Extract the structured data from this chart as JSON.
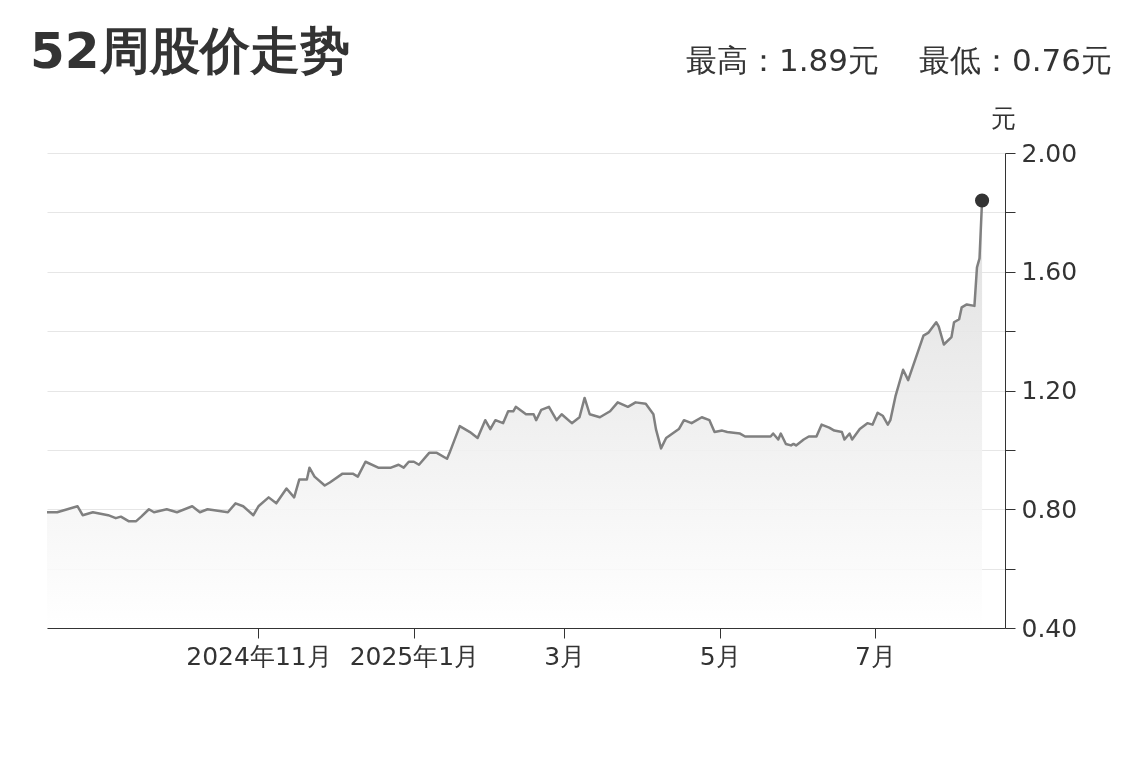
{
  "chart_data": {
    "type": "area",
    "title": "52周股价走势",
    "annotations": [
      "最高：1.89元",
      "最低：0.76元"
    ],
    "ylabel": "元",
    "xlim": [
      "2024-08-10",
      "2025-08-21"
    ],
    "xticks": [
      {
        "value": "2024-11-01",
        "label": "2024年11月"
      },
      {
        "value": "2025-01-01",
        "label": "2025年1月"
      },
      {
        "value": "2025-03-01",
        "label": "3月"
      },
      {
        "value": "2025-05-01",
        "label": "5月"
      },
      {
        "value": "2025-07-01",
        "label": "7月"
      }
    ],
    "ylim": [
      0.4,
      2.0
    ],
    "yticks": [
      {
        "value": 0.4,
        "label": "0.40"
      },
      {
        "value": 0.6,
        "label": null
      },
      {
        "value": 0.8,
        "label": "0.80"
      },
      {
        "value": 1.0,
        "label": null
      },
      {
        "value": 1.2,
        "label": "1.20"
      },
      {
        "value": 1.4,
        "label": null
      },
      {
        "value": 1.6,
        "label": "1.60"
      },
      {
        "value": 1.8,
        "label": null
      },
      {
        "value": 2.0,
        "label": "2.00"
      }
    ],
    "grid": "y",
    "series": [
      {
        "color": "#808080",
        "x": [
          "2024-08-10",
          "2024-08-14",
          "2024-08-18",
          "2024-08-22",
          "2024-08-24",
          "2024-08-28",
          "2024-09-03",
          "2024-09-06",
          "2024-09-08",
          "2024-09-11",
          "2024-09-14",
          "2024-09-16",
          "2024-09-19",
          "2024-09-21",
          "2024-09-26",
          "2024-09-30",
          "2024-10-06",
          "2024-10-09",
          "2024-10-12",
          "2024-10-20",
          "2024-10-23",
          "2024-10-26",
          "2024-10-30",
          "2024-11-01",
          "2024-11-05",
          "2024-11-08",
          "2024-11-12",
          "2024-11-15",
          "2024-11-17",
          "2024-11-20",
          "2024-11-21",
          "2024-11-23",
          "2024-11-27",
          "2024-11-29",
          "2024-12-04",
          "2024-12-08",
          "2024-12-10",
          "2024-12-13",
          "2024-12-18",
          "2024-12-23",
          "2024-12-26",
          "2024-12-28",
          "2024-12-30",
          "2025-01-01",
          "2025-01-03",
          "2025-01-07",
          "2025-01-10",
          "2025-01-14",
          "2025-01-15",
          "2025-01-19",
          "2025-01-23",
          "2025-01-26",
          "2025-01-29",
          "2025-01-31",
          "2025-02-02",
          "2025-02-05",
          "2025-02-07",
          "2025-02-09",
          "2025-02-10",
          "2025-02-14",
          "2025-02-17",
          "2025-02-18",
          "2025-02-20",
          "2025-02-23",
          "2025-02-26",
          "2025-02-28",
          "2025-03-04",
          "2025-03-07",
          "2025-03-09",
          "2025-03-11",
          "2025-03-15",
          "2025-03-17",
          "2025-03-19",
          "2025-03-22",
          "2025-03-26",
          "2025-03-29",
          "2025-04-02",
          "2025-04-05",
          "2025-04-06",
          "2025-04-08",
          "2025-04-10",
          "2025-04-15",
          "2025-04-17",
          "2025-04-20",
          "2025-04-24",
          "2025-04-27",
          "2025-04-29",
          "2025-05-02",
          "2025-05-04",
          "2025-05-09",
          "2025-05-11",
          "2025-05-21",
          "2025-05-22",
          "2025-05-24",
          "2025-05-25",
          "2025-05-27",
          "2025-05-29",
          "2025-05-30",
          "2025-05-31",
          "2025-06-03",
          "2025-06-05",
          "2025-06-08",
          "2025-06-10",
          "2025-06-13",
          "2025-06-15",
          "2025-06-18",
          "2025-06-19",
          "2025-06-21",
          "2025-06-22",
          "2025-06-25",
          "2025-06-28",
          "2025-06-30",
          "2025-07-02",
          "2025-07-04",
          "2025-07-06",
          "2025-07-07",
          "2025-07-09",
          "2025-07-12",
          "2025-07-14",
          "2025-07-20",
          "2025-07-22",
          "2025-07-25",
          "2025-07-26",
          "2025-07-28",
          "2025-07-31",
          "2025-08-01",
          "2025-08-03",
          "2025-08-04",
          "2025-08-06",
          "2025-08-09",
          "2025-08-10",
          "2025-08-11",
          "2025-08-12"
        ],
        "values": [
          0.79,
          0.79,
          0.8,
          0.81,
          0.78,
          0.79,
          0.78,
          0.77,
          0.775,
          0.76,
          0.76,
          0.775,
          0.8,
          0.79,
          0.8,
          0.79,
          0.81,
          0.79,
          0.8,
          0.79,
          0.82,
          0.81,
          0.78,
          0.81,
          0.84,
          0.82,
          0.87,
          0.84,
          0.9,
          0.9,
          0.94,
          0.91,
          0.88,
          0.89,
          0.92,
          0.92,
          0.91,
          0.96,
          0.94,
          0.94,
          0.95,
          0.94,
          0.96,
          0.96,
          0.95,
          0.99,
          0.99,
          0.97,
          0.99,
          1.08,
          1.06,
          1.04,
          1.1,
          1.07,
          1.1,
          1.09,
          1.13,
          1.13,
          1.145,
          1.12,
          1.12,
          1.1,
          1.135,
          1.145,
          1.1,
          1.12,
          1.09,
          1.11,
          1.175,
          1.12,
          1.11,
          1.12,
          1.13,
          1.16,
          1.145,
          1.16,
          1.155,
          1.12,
          1.07,
          1.005,
          1.04,
          1.07,
          1.1,
          1.09,
          1.11,
          1.1,
          1.06,
          1.065,
          1.06,
          1.055,
          1.045,
          1.045,
          1.055,
          1.035,
          1.055,
          1.02,
          1.015,
          1.02,
          1.015,
          1.035,
          1.045,
          1.045,
          1.085,
          1.075,
          1.065,
          1.06,
          1.035,
          1.055,
          1.035,
          1.07,
          1.09,
          1.085,
          1.125,
          1.115,
          1.085,
          1.1,
          1.18,
          1.27,
          1.235,
          1.385,
          1.395,
          1.43,
          1.415,
          1.355,
          1.38,
          1.43,
          1.44,
          1.48,
          1.49,
          1.485,
          1.615,
          1.645,
          1.84
        ]
      },
      {
        "type": "scatter",
        "color": "#333333",
        "x": [
          "2025-08-12"
        ],
        "values": [
          1.84
        ]
      }
    ]
  }
}
